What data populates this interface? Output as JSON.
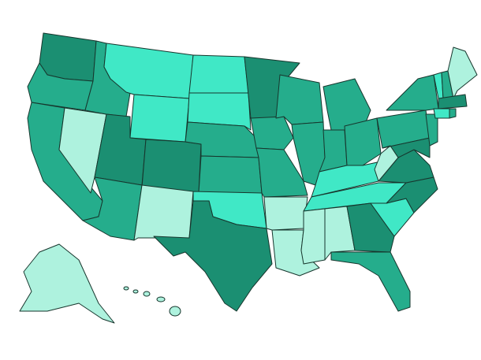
{
  "map": {
    "type": "choropleth",
    "palette": [
      "#1b8f72",
      "#25ad8c",
      "#40e8c6",
      "#aef2de"
    ],
    "background": "#ffffff",
    "outline": "#17362d"
  }
}
